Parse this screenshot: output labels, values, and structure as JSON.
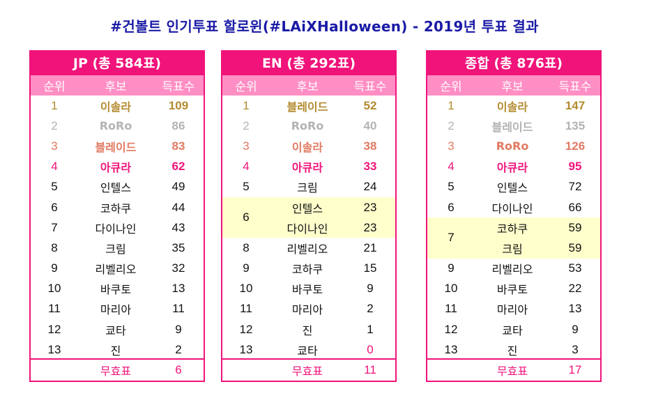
{
  "title": "#건볼트 인기투표 할로윈(#LAiXHalloween) - 2019년 투표 결과",
  "columns": {
    "rank": "순위",
    "candidate": "후보",
    "votes": "득표수"
  },
  "colors": {
    "accent": "#f0137a",
    "header_row": "#ff8ec4",
    "title": "#1a1aa6",
    "gold": "#b38b2f",
    "silver": "#b3b3b3",
    "bronze": "#e07a62",
    "tie_highlight": "#ffffcc"
  },
  "jp": {
    "header": "JP (총 584표)",
    "rows": [
      {
        "rank": "1",
        "name": "이솔라",
        "votes": "109"
      },
      {
        "rank": "2",
        "name": "RoRo",
        "votes": "86"
      },
      {
        "rank": "3",
        "name": "블레이드",
        "votes": "83"
      },
      {
        "rank": "4",
        "name": "아큐라",
        "votes": "62"
      },
      {
        "rank": "5",
        "name": "인텔스",
        "votes": "49"
      },
      {
        "rank": "6",
        "name": "코하쿠",
        "votes": "44"
      },
      {
        "rank": "7",
        "name": "다이나인",
        "votes": "43"
      },
      {
        "rank": "8",
        "name": "크림",
        "votes": "35"
      },
      {
        "rank": "9",
        "name": "리벨리오",
        "votes": "32"
      },
      {
        "rank": "10",
        "name": "바쿠토",
        "votes": "13"
      },
      {
        "rank": "11",
        "name": "마리아",
        "votes": "11"
      },
      {
        "rank": "12",
        "name": "쿄타",
        "votes": "9"
      },
      {
        "rank": "13",
        "name": "진",
        "votes": "2"
      }
    ],
    "invalid_label": "무효표",
    "invalid_votes": "6"
  },
  "en": {
    "header": "EN (총 292표)",
    "rows_top": [
      {
        "rank": "1",
        "name": "블레이드",
        "votes": "52"
      },
      {
        "rank": "2",
        "name": "RoRo",
        "votes": "40"
      },
      {
        "rank": "3",
        "name": "이솔라",
        "votes": "38"
      },
      {
        "rank": "4",
        "name": "아큐라",
        "votes": "33"
      },
      {
        "rank": "5",
        "name": "크림",
        "votes": "24"
      }
    ],
    "tie": {
      "rank": "6",
      "items": [
        {
          "name": "인텔스",
          "votes": "23"
        },
        {
          "name": "다이나인",
          "votes": "23"
        }
      ]
    },
    "rows_bottom": [
      {
        "rank": "8",
        "name": "리벨리오",
        "votes": "21"
      },
      {
        "rank": "9",
        "name": "코하쿠",
        "votes": "15"
      },
      {
        "rank": "10",
        "name": "바쿠토",
        "votes": "9"
      },
      {
        "rank": "11",
        "name": "마리아",
        "votes": "2"
      },
      {
        "rank": "12",
        "name": "진",
        "votes": "1"
      },
      {
        "rank": "13",
        "name": "쿄타",
        "votes": "0"
      }
    ],
    "invalid_label": "무효표",
    "invalid_votes": "11"
  },
  "total": {
    "header": "종합 (총 876표)",
    "rows_top": [
      {
        "rank": "1",
        "name": "이솔라",
        "votes": "147"
      },
      {
        "rank": "2",
        "name": "블레이드",
        "votes": "135"
      },
      {
        "rank": "3",
        "name": "RoRo",
        "votes": "126"
      },
      {
        "rank": "4",
        "name": "아큐라",
        "votes": "95"
      },
      {
        "rank": "5",
        "name": "인텔스",
        "votes": "72"
      },
      {
        "rank": "6",
        "name": "다이나인",
        "votes": "66"
      }
    ],
    "tie": {
      "rank": "7",
      "items": [
        {
          "name": "코하쿠",
          "votes": "59"
        },
        {
          "name": "크림",
          "votes": "59"
        }
      ]
    },
    "rows_bottom": [
      {
        "rank": "9",
        "name": "리벨리오",
        "votes": "53"
      },
      {
        "rank": "10",
        "name": "바쿠토",
        "votes": "22"
      },
      {
        "rank": "11",
        "name": "마리아",
        "votes": "13"
      },
      {
        "rank": "12",
        "name": "쿄타",
        "votes": "9"
      },
      {
        "rank": "13",
        "name": "진",
        "votes": "3"
      }
    ],
    "invalid_label": "무효표",
    "invalid_votes": "17"
  }
}
